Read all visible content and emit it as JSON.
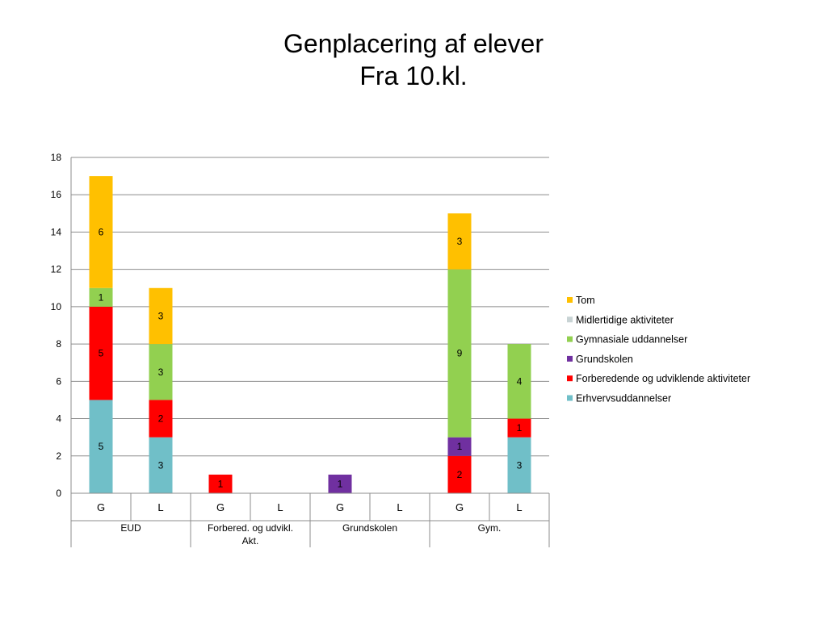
{
  "chart_data": {
    "type": "bar",
    "stacked": true,
    "title": [
      "Genplacering af elever",
      "Fra 10.kl."
    ],
    "ylim": [
      0,
      18
    ],
    "yticks": [
      0,
      2,
      4,
      6,
      8,
      10,
      12,
      14,
      16,
      18
    ],
    "grid": true,
    "legend_position": "right",
    "categories": [
      "G",
      "L",
      "G",
      "L",
      "G",
      "L",
      "G",
      "L"
    ],
    "groups": [
      {
        "label": [
          "EUD"
        ],
        "span": 2
      },
      {
        "label": [
          "Forbered. og udvikl.",
          "Akt."
        ],
        "span": 2
      },
      {
        "label": [
          "Grundskolen"
        ],
        "span": 2
      },
      {
        "label": [
          "Gym."
        ],
        "span": 2
      }
    ],
    "series": [
      {
        "name": "Erhvervsuddannelser",
        "color": "#70BFC8",
        "values": [
          5,
          3,
          0,
          0,
          0,
          0,
          0,
          3
        ]
      },
      {
        "name": "Forberedende og udviklende aktiviteter",
        "color": "#FF0000",
        "values": [
          5,
          2,
          1,
          0,
          0,
          0,
          2,
          1
        ]
      },
      {
        "name": "Grundskolen",
        "color": "#7030A0",
        "values": [
          0,
          0,
          0,
          0,
          1,
          0,
          1,
          0
        ]
      },
      {
        "name": "Gymnasiale uddannelser",
        "color": "#92D050",
        "values": [
          1,
          3,
          0,
          0,
          0,
          0,
          9,
          4
        ]
      },
      {
        "name": "Midlertidige aktiviteter",
        "color": "#C8D3D4",
        "values": [
          0,
          0,
          0,
          0,
          0,
          0,
          0,
          0
        ]
      },
      {
        "name": "Tom",
        "color": "#FFC000",
        "values": [
          6,
          3,
          0,
          0,
          0,
          0,
          3,
          0
        ]
      }
    ]
  }
}
